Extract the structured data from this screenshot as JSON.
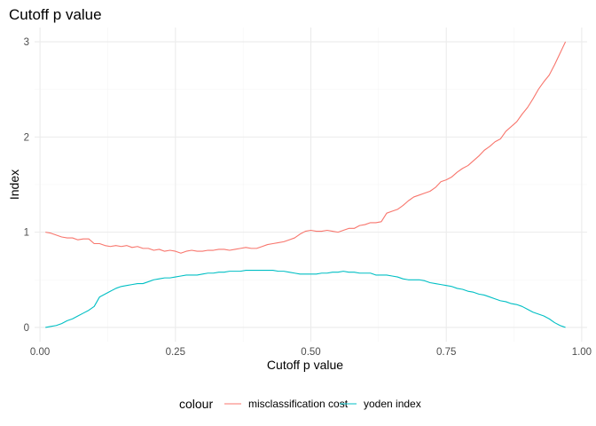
{
  "chart_data": {
    "type": "line",
    "title": "Cutoff p value",
    "xlabel": "Cutoff p value",
    "ylabel": "Index",
    "xlim": [
      -0.01,
      1.01
    ],
    "ylim": [
      -0.15,
      3.15
    ],
    "xticks": [
      0.0,
      0.25,
      0.5,
      0.75,
      1.0
    ],
    "xtick_labels": [
      "0.00",
      "0.25",
      "0.50",
      "0.75",
      "1.00"
    ],
    "yticks": [
      0,
      1,
      2,
      3
    ],
    "ytick_labels": [
      "0",
      "1",
      "2",
      "3"
    ],
    "grid": true,
    "legend": {
      "title": "colour",
      "position": "bottom"
    },
    "series": [
      {
        "name": "misclassification cost",
        "color": "#F8766D",
        "x": [
          0.01,
          0.02,
          0.03,
          0.04,
          0.05,
          0.06,
          0.07,
          0.08,
          0.09,
          0.1,
          0.11,
          0.12,
          0.13,
          0.14,
          0.15,
          0.16,
          0.17,
          0.18,
          0.19,
          0.2,
          0.21,
          0.22,
          0.23,
          0.24,
          0.25,
          0.26,
          0.27,
          0.28,
          0.29,
          0.3,
          0.31,
          0.32,
          0.33,
          0.34,
          0.35,
          0.36,
          0.37,
          0.38,
          0.39,
          0.4,
          0.41,
          0.42,
          0.43,
          0.44,
          0.45,
          0.46,
          0.47,
          0.48,
          0.49,
          0.5,
          0.51,
          0.52,
          0.53,
          0.54,
          0.55,
          0.56,
          0.57,
          0.58,
          0.59,
          0.6,
          0.61,
          0.62,
          0.63,
          0.64,
          0.65,
          0.66,
          0.67,
          0.68,
          0.69,
          0.7,
          0.71,
          0.72,
          0.73,
          0.74,
          0.75,
          0.76,
          0.77,
          0.78,
          0.79,
          0.8,
          0.81,
          0.82,
          0.83,
          0.84,
          0.85,
          0.86,
          0.87,
          0.88,
          0.89,
          0.9,
          0.91,
          0.92,
          0.93,
          0.94,
          0.95,
          0.96,
          0.97
        ],
        "y": [
          1.0,
          0.99,
          0.97,
          0.95,
          0.94,
          0.94,
          0.92,
          0.93,
          0.93,
          0.88,
          0.88,
          0.86,
          0.85,
          0.86,
          0.85,
          0.86,
          0.84,
          0.85,
          0.83,
          0.83,
          0.81,
          0.82,
          0.8,
          0.81,
          0.8,
          0.78,
          0.8,
          0.81,
          0.8,
          0.8,
          0.81,
          0.81,
          0.82,
          0.82,
          0.81,
          0.82,
          0.83,
          0.84,
          0.83,
          0.83,
          0.85,
          0.87,
          0.88,
          0.89,
          0.9,
          0.92,
          0.94,
          0.98,
          1.01,
          1.02,
          1.01,
          1.01,
          1.02,
          1.01,
          1.0,
          1.02,
          1.04,
          1.04,
          1.07,
          1.08,
          1.1,
          1.1,
          1.11,
          1.2,
          1.22,
          1.24,
          1.28,
          1.33,
          1.37,
          1.39,
          1.41,
          1.43,
          1.47,
          1.53,
          1.55,
          1.58,
          1.63,
          1.67,
          1.7,
          1.75,
          1.8,
          1.86,
          1.9,
          1.95,
          1.98,
          2.06,
          2.11,
          2.16,
          2.24,
          2.31,
          2.4,
          2.5,
          2.58,
          2.65,
          2.76,
          2.88,
          3.0
        ]
      },
      {
        "name": "yoden index",
        "color": "#00BFC4",
        "x": [
          0.01,
          0.02,
          0.03,
          0.04,
          0.05,
          0.06,
          0.07,
          0.08,
          0.09,
          0.1,
          0.11,
          0.12,
          0.13,
          0.14,
          0.15,
          0.16,
          0.17,
          0.18,
          0.19,
          0.2,
          0.21,
          0.22,
          0.23,
          0.24,
          0.25,
          0.26,
          0.27,
          0.28,
          0.29,
          0.3,
          0.31,
          0.32,
          0.33,
          0.34,
          0.35,
          0.36,
          0.37,
          0.38,
          0.39,
          0.4,
          0.41,
          0.42,
          0.43,
          0.44,
          0.45,
          0.46,
          0.47,
          0.48,
          0.49,
          0.5,
          0.51,
          0.52,
          0.53,
          0.54,
          0.55,
          0.56,
          0.57,
          0.58,
          0.59,
          0.6,
          0.61,
          0.62,
          0.63,
          0.64,
          0.65,
          0.66,
          0.67,
          0.68,
          0.69,
          0.7,
          0.71,
          0.72,
          0.73,
          0.74,
          0.75,
          0.76,
          0.77,
          0.78,
          0.79,
          0.8,
          0.81,
          0.82,
          0.83,
          0.84,
          0.85,
          0.86,
          0.87,
          0.88,
          0.89,
          0.9,
          0.91,
          0.92,
          0.93,
          0.94,
          0.95,
          0.96,
          0.97
        ],
        "y": [
          0.0,
          0.01,
          0.02,
          0.04,
          0.07,
          0.09,
          0.12,
          0.15,
          0.18,
          0.22,
          0.32,
          0.35,
          0.38,
          0.41,
          0.43,
          0.44,
          0.45,
          0.46,
          0.46,
          0.48,
          0.5,
          0.51,
          0.52,
          0.52,
          0.53,
          0.54,
          0.55,
          0.55,
          0.55,
          0.56,
          0.57,
          0.57,
          0.58,
          0.58,
          0.59,
          0.59,
          0.59,
          0.6,
          0.6,
          0.6,
          0.6,
          0.6,
          0.6,
          0.59,
          0.59,
          0.58,
          0.57,
          0.56,
          0.56,
          0.56,
          0.56,
          0.57,
          0.57,
          0.58,
          0.58,
          0.59,
          0.58,
          0.58,
          0.57,
          0.57,
          0.57,
          0.55,
          0.55,
          0.55,
          0.54,
          0.53,
          0.51,
          0.5,
          0.5,
          0.5,
          0.49,
          0.47,
          0.46,
          0.45,
          0.44,
          0.43,
          0.41,
          0.4,
          0.38,
          0.37,
          0.35,
          0.34,
          0.32,
          0.3,
          0.28,
          0.27,
          0.25,
          0.24,
          0.22,
          0.19,
          0.16,
          0.14,
          0.12,
          0.09,
          0.05,
          0.02,
          0.0
        ]
      }
    ]
  }
}
